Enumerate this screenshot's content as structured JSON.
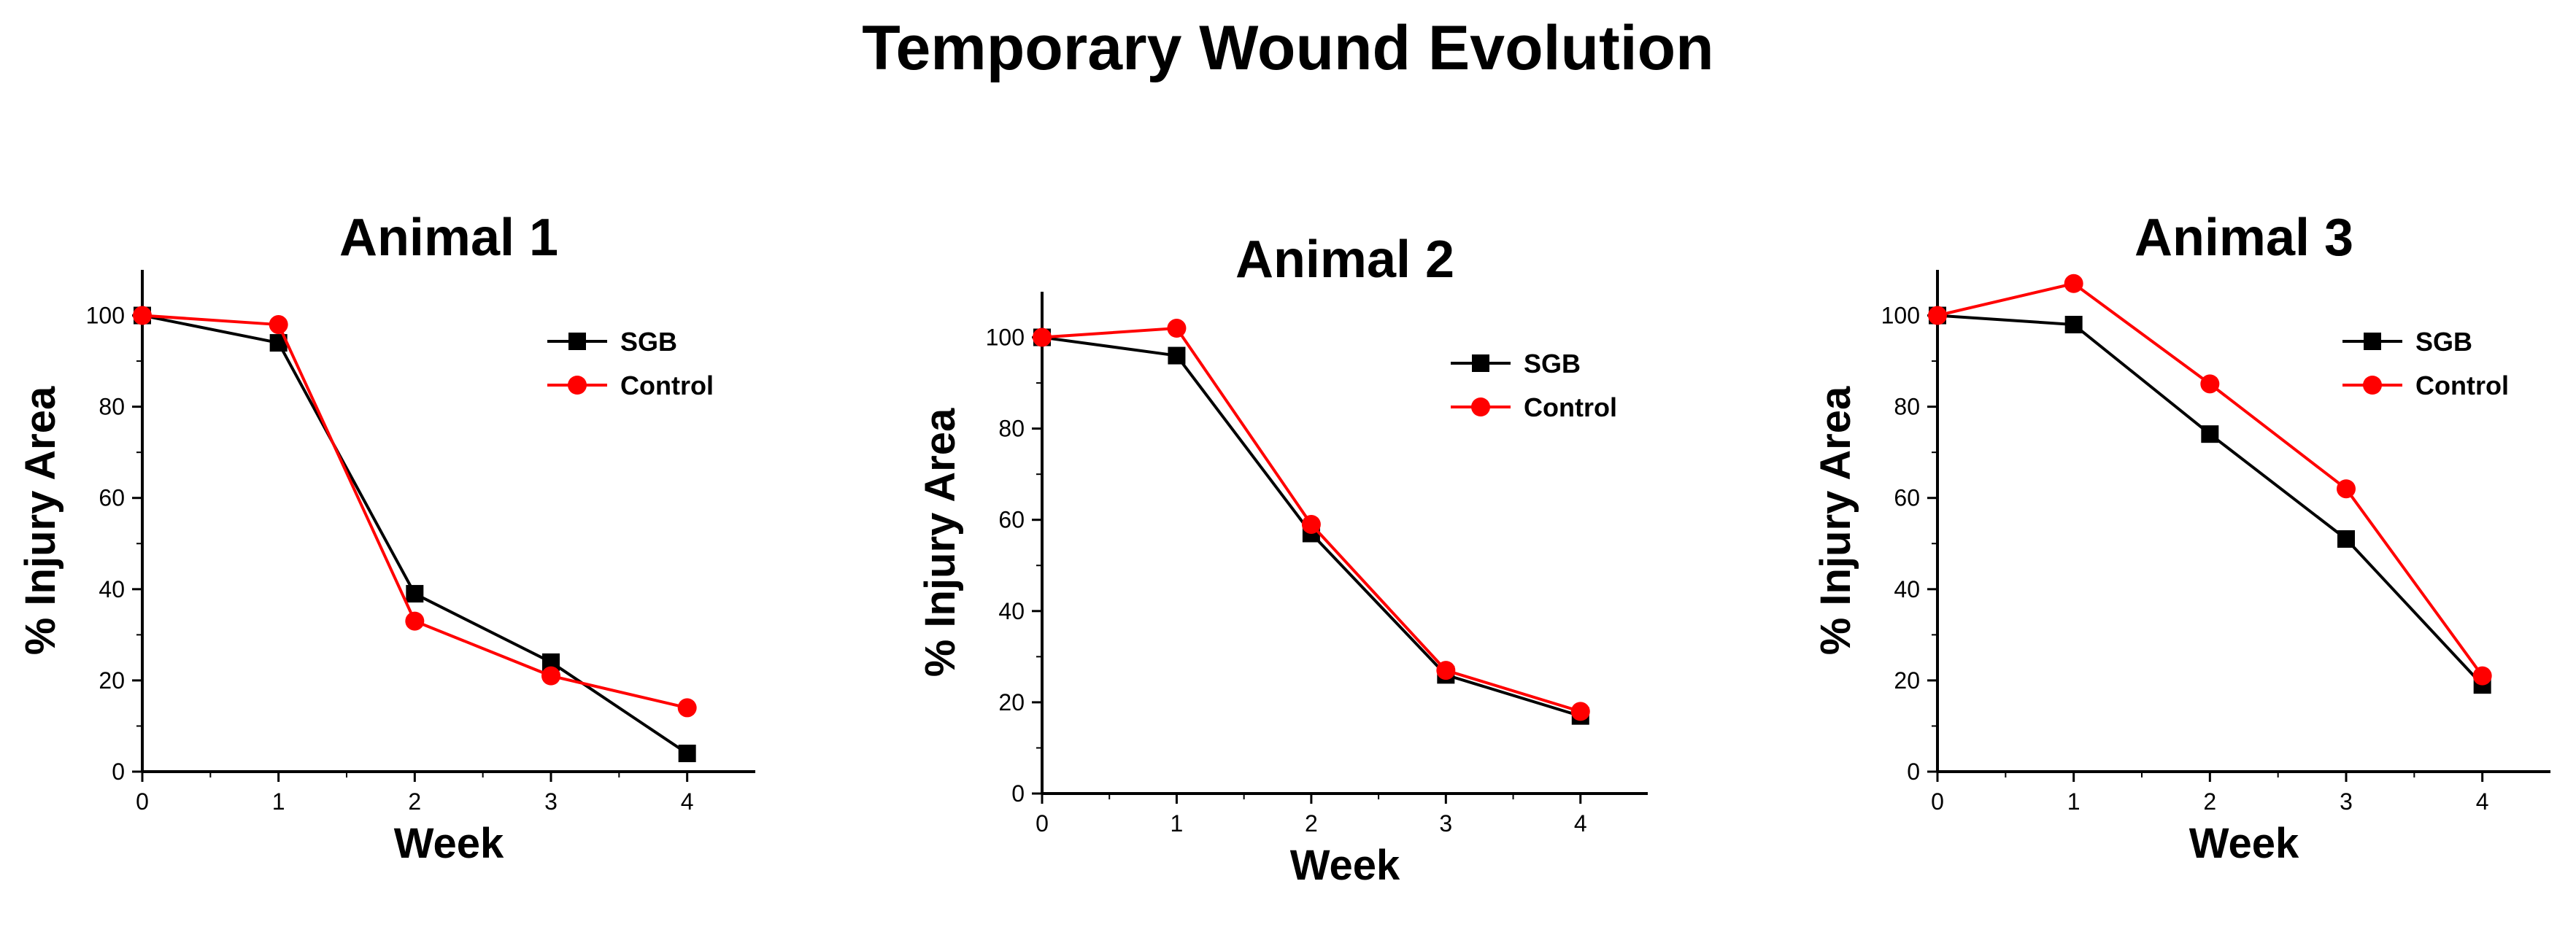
{
  "figure": {
    "title": "Temporary Wound Evolution"
  },
  "chart_data": [
    {
      "type": "line",
      "title": "Animal 1",
      "xlabel": "Week",
      "ylabel": "% Injury Area",
      "x": [
        0,
        1,
        2,
        3,
        4
      ],
      "xticks": [
        "0",
        "1",
        "2",
        "3",
        "4"
      ],
      "yticks": [
        "0",
        "20",
        "40",
        "60",
        "80",
        "100"
      ],
      "xlim": [
        0,
        4.5
      ],
      "ylim": [
        0,
        110
      ],
      "legend_position": "top-right",
      "series": [
        {
          "name": "SGB",
          "color": "#000000",
          "marker": "square",
          "values": [
            100,
            94,
            39,
            24,
            4
          ]
        },
        {
          "name": "Control",
          "color": "#ff0000",
          "marker": "circle",
          "values": [
            100,
            98,
            33,
            21,
            14
          ]
        }
      ]
    },
    {
      "type": "line",
      "title": "Animal 2",
      "xlabel": "Week",
      "ylabel": "% Injury Area",
      "x": [
        0,
        1,
        2,
        3,
        4
      ],
      "xticks": [
        "0",
        "1",
        "2",
        "3",
        "4"
      ],
      "yticks": [
        "0",
        "20",
        "40",
        "60",
        "80",
        "100"
      ],
      "xlim": [
        0,
        4.5
      ],
      "ylim": [
        0,
        110
      ],
      "legend_position": "top-right",
      "series": [
        {
          "name": "SGB",
          "color": "#000000",
          "marker": "square",
          "values": [
            100,
            96,
            57,
            26,
            17
          ]
        },
        {
          "name": "Control",
          "color": "#ff0000",
          "marker": "circle",
          "values": [
            100,
            102,
            59,
            27,
            18
          ]
        }
      ]
    },
    {
      "type": "line",
      "title": "Animal 3",
      "xlabel": "Week",
      "ylabel": "% Injury Area",
      "x": [
        0,
        1,
        2,
        3,
        4
      ],
      "xticks": [
        "0",
        "1",
        "2",
        "3",
        "4"
      ],
      "yticks": [
        "0",
        "20",
        "40",
        "60",
        "80",
        "100"
      ],
      "xlim": [
        0,
        4.5
      ],
      "ylim": [
        0,
        110
      ],
      "legend_position": "top-right",
      "series": [
        {
          "name": "SGB",
          "color": "#000000",
          "marker": "square",
          "values": [
            100,
            98,
            74,
            51,
            19
          ]
        },
        {
          "name": "Control",
          "color": "#ff0000",
          "marker": "circle",
          "values": [
            100,
            107,
            85,
            62,
            21
          ]
        }
      ]
    }
  ]
}
